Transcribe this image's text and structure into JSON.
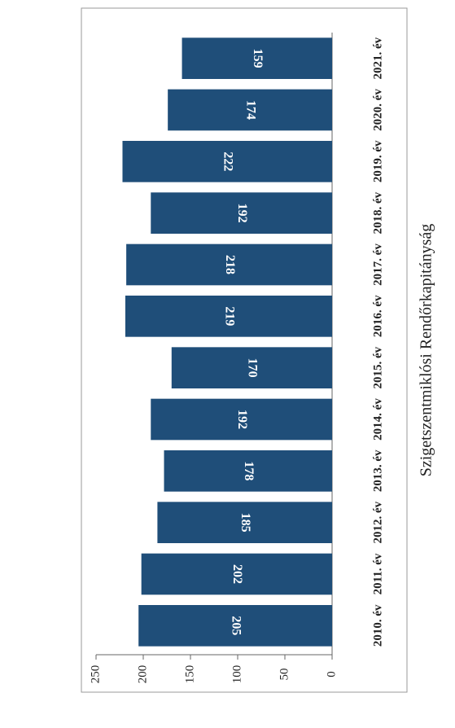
{
  "chart_data": {
    "type": "bar",
    "orientation": "horizontal",
    "title": "Szigetszentmiklósi Rendőrkapitányság",
    "categories": [
      "2010. év",
      "2011. év",
      "2012. év",
      "2013. év",
      "2014. év",
      "2015. év",
      "2016. év",
      "2017. év",
      "2018. év",
      "2019. év",
      "2020. év",
      "2021. év"
    ],
    "values": [
      205,
      202,
      185,
      178,
      192,
      170,
      219,
      218,
      192,
      222,
      174,
      159
    ],
    "color": "#1f4e79",
    "xlim": [
      0,
      250
    ],
    "xticks": [
      0,
      50,
      100,
      150,
      200,
      250
    ]
  }
}
